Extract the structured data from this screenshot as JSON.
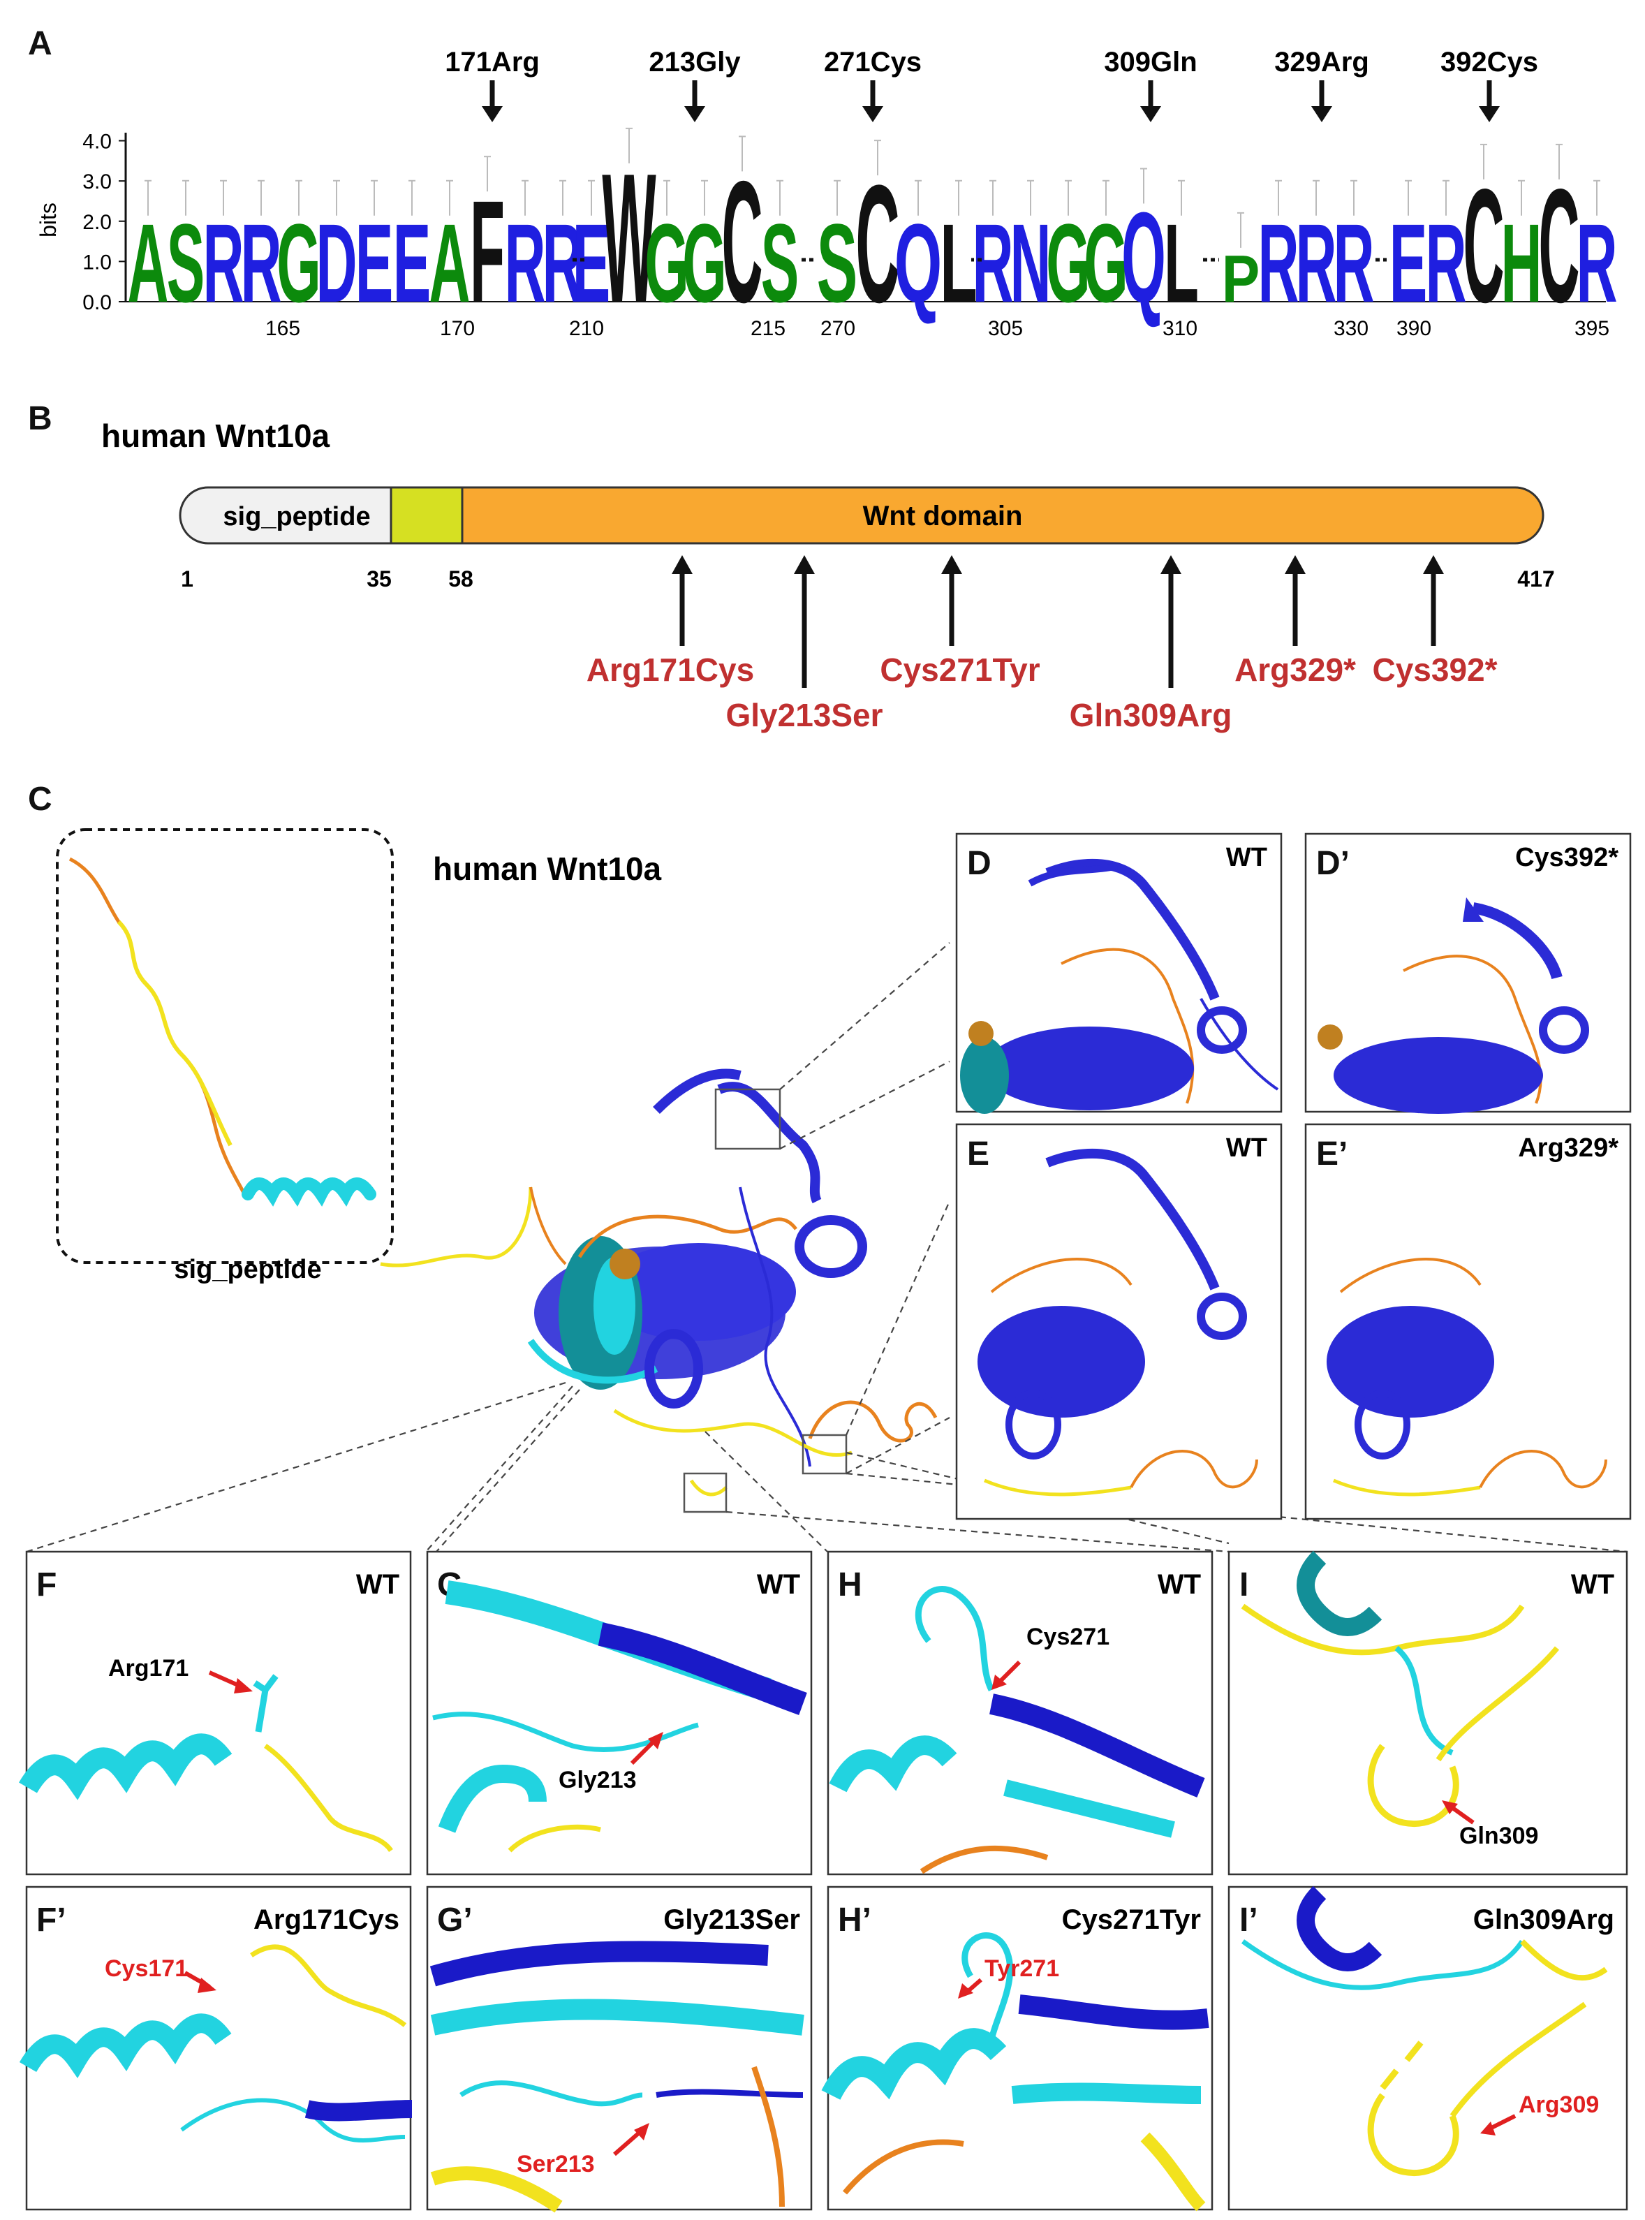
{
  "panel_labels": {
    "a": "A",
    "b": "B",
    "c": "C",
    "d": "D",
    "d2": "D’",
    "e": "E",
    "e2": "E’",
    "f": "F",
    "f2": "F’",
    "g": "G",
    "g2": "G’",
    "h": "H",
    "h2": "H’",
    "i": "I",
    "i2": "I’"
  },
  "logo": {
    "ylabel": "bits",
    "yticks": [
      "0.0",
      "1.0",
      "2.0",
      "3.0",
      "4.0"
    ],
    "arrows": [
      "171Arg",
      "213Gly",
      "271Cys",
      "309Gln",
      "329Arg",
      "392Cys"
    ],
    "xticks": [
      "165",
      "170",
      "210",
      "215",
      "270",
      "305",
      "310",
      "330",
      "390",
      "395"
    ],
    "segments": [
      {
        "letters": [
          "A",
          "S",
          "R",
          "R",
          "G",
          "D",
          "E",
          "E",
          "A",
          "F",
          "R",
          "R"
        ],
        "colors": [
          "#0c8a0c",
          "#0c8a0c",
          "#1f1fe0",
          "#1f1fe0",
          "#0c8a0c",
          "#1f1fe0",
          "#1f1fe0",
          "#1f1fe0",
          "#0c8a0c",
          "#111111",
          "#1f1fe0",
          "#1f1fe0"
        ],
        "heights": [
          2.0,
          2.0,
          2.0,
          2.0,
          2.0,
          2.0,
          2.0,
          2.0,
          2.0,
          2.6,
          2.0,
          2.0
        ]
      },
      {
        "letters": [
          "E",
          "W",
          "G",
          "G",
          "C",
          "S"
        ],
        "colors": [
          "#1f1fe0",
          "#111111",
          "#0c8a0c",
          "#0c8a0c",
          "#111111",
          "#0c8a0c"
        ],
        "heights": [
          2.0,
          3.3,
          2.0,
          2.0,
          3.1,
          2.0
        ]
      },
      {
        "letters": [
          "S",
          "C",
          "Q",
          "L"
        ],
        "colors": [
          "#0c8a0c",
          "#111111",
          "#1f1fe0",
          "#111111"
        ],
        "heights": [
          2.0,
          3.0,
          2.0,
          2.0
        ]
      },
      {
        "letters": [
          "R",
          "N",
          "G",
          "G",
          "Q",
          "L"
        ],
        "colors": [
          "#1f1fe0",
          "#1f1fe0",
          "#0c8a0c",
          "#0c8a0c",
          "#1f1fe0",
          "#111111"
        ],
        "heights": [
          2.0,
          2.0,
          2.0,
          2.0,
          2.3,
          2.0
        ]
      },
      {
        "letters": [
          "P",
          "R",
          "R",
          "R"
        ],
        "colors": [
          "#0c8a0c",
          "#1f1fe0",
          "#1f1fe0",
          "#1f1fe0"
        ],
        "heights": [
          1.2,
          2.0,
          2.0,
          2.0
        ]
      },
      {
        "letters": [
          "E",
          "R",
          "C",
          "H",
          "C",
          "R"
        ],
        "colors": [
          "#1f1fe0",
          "#1f1fe0",
          "#111111",
          "#0c8a0c",
          "#111111",
          "#1f1fe0"
        ],
        "heights": [
          2.0,
          2.0,
          2.9,
          2.0,
          2.9,
          2.0
        ]
      }
    ]
  },
  "domain_map": {
    "title": "human Wnt10a",
    "sig_label": "sig_peptide",
    "domain_label": "Wnt domain",
    "positions": [
      "1",
      "35",
      "58",
      "417"
    ],
    "mutations": [
      "Arg171Cys",
      "Gly213Ser",
      "Cys271Tyr",
      "Gln309Arg",
      "Arg329*",
      "Cys392*"
    ]
  },
  "structure": {
    "title": "human Wnt10a",
    "inset_label": "sig_peptide",
    "zoom_tags": {
      "d": "WT",
      "d2": "Cys392*",
      "e": "WT",
      "e2": "Arg329*"
    }
  },
  "details": {
    "f": {
      "tag": "WT",
      "residue": "Arg171"
    },
    "g": {
      "tag": "WT",
      "residue": "Gly213"
    },
    "h": {
      "tag": "WT",
      "residue": "Cys271"
    },
    "i": {
      "tag": "WT",
      "residue": "Gln309"
    },
    "f2": {
      "tag": "Arg171Cys",
      "residue": "Cys171"
    },
    "g2": {
      "tag": "Gly213Ser",
      "residue": "Ser213"
    },
    "h2": {
      "tag": "Cys271Tyr",
      "residue": "Tyr271"
    },
    "i2": {
      "tag": "Gln309Arg",
      "residue": "Arg309"
    }
  },
  "colors": {
    "blue": "#2b2bd6",
    "cyan": "#22d3e0",
    "yellow": "#f2e21e",
    "orange": "#e8821e",
    "domain_fill": "#f9a830",
    "linker_fill": "#d6e022",
    "sig_fill": "#f1f1f1",
    "mutation_red": "#c03030"
  }
}
